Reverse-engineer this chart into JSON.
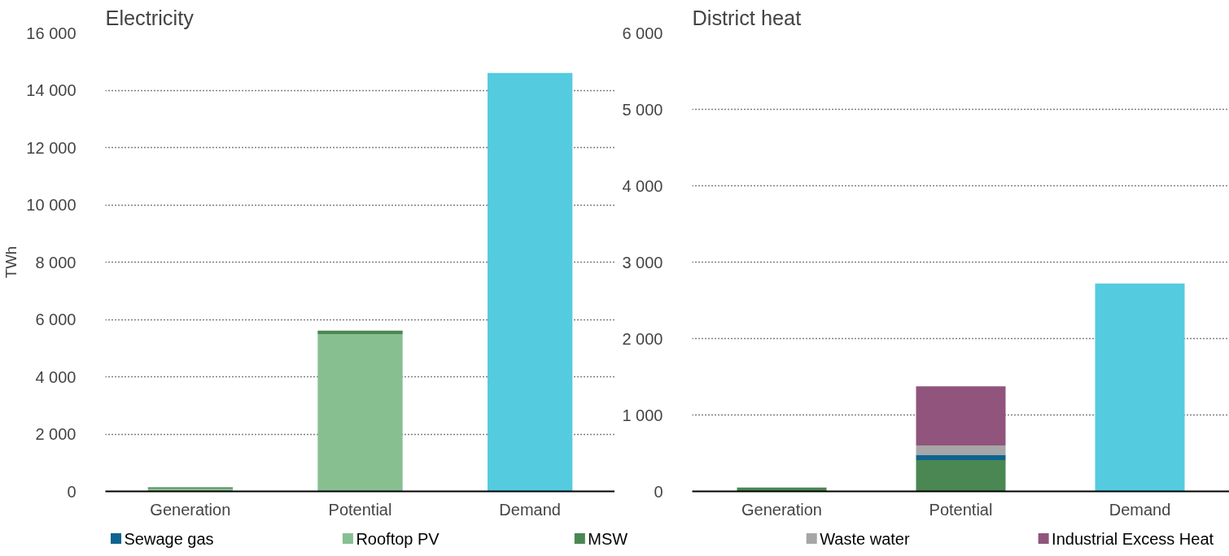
{
  "chart_data": [
    {
      "type": "bar",
      "title": "Electricity",
      "ylabel": "TWh",
      "stacked": true,
      "categories": [
        "Generation",
        "Potential",
        "Demand"
      ],
      "series": [
        {
          "name": "Sewage gas",
          "color": "#0f6390",
          "values": [
            0,
            30,
            0
          ]
        },
        {
          "name": "Rooftop PV",
          "color": "#88bf91",
          "values": [
            90,
            5450,
            0
          ]
        },
        {
          "name": "MSW",
          "color": "#4a8752",
          "values": [
            50,
            130,
            0
          ]
        },
        {
          "color": "#55cbe0",
          "values": [
            0,
            0,
            14600
          ]
        }
      ],
      "ylim": [
        0,
        16000
      ],
      "yticks": [
        0,
        {
          "value": 2000,
          "label": "2 000"
        },
        {
          "value": 4000,
          "label": "4 000"
        },
        {
          "value": 6000,
          "label": "6 000"
        },
        {
          "value": 8000,
          "label": "8 000"
        },
        {
          "value": 10000,
          "label": "10 000"
        },
        {
          "value": 12000,
          "label": "12 000"
        },
        {
          "value": 14000,
          "label": "14 000"
        },
        {
          "value": 16000,
          "label": "16 000"
        }
      ],
      "grid": "y",
      "legend": "bottom"
    },
    {
      "type": "bar",
      "title": "District heat",
      "stacked": true,
      "categories": [
        "Generation",
        "Potential",
        "Demand"
      ],
      "series": [
        {
          "name": "MSW",
          "color": "#4a8752",
          "values": [
            50,
            410,
            0
          ]
        },
        {
          "name": "Sewage gas",
          "color": "#0f6390",
          "values": [
            0,
            70,
            0
          ]
        },
        {
          "name": "Waste water",
          "color": "#a6a6a6",
          "values": [
            0,
            120,
            0
          ]
        },
        {
          "name": "Industrial Excess Heat",
          "color": "#91547c",
          "values": [
            0,
            775,
            0
          ]
        },
        {
          "color": "#55cbe0",
          "values": [
            0,
            0,
            2720
          ]
        }
      ],
      "ylim": [
        0,
        6000
      ],
      "yticks": [
        0,
        {
          "value": 1000,
          "label": "1 000"
        },
        {
          "value": 2000,
          "label": "2 000"
        },
        {
          "value": 3000,
          "label": "3 000"
        },
        {
          "value": 4000,
          "label": "4 000"
        },
        {
          "value": 5000,
          "label": "5 000"
        },
        {
          "value": 6000,
          "label": "6 000"
        }
      ],
      "grid": "y",
      "legend": "bottom"
    }
  ]
}
